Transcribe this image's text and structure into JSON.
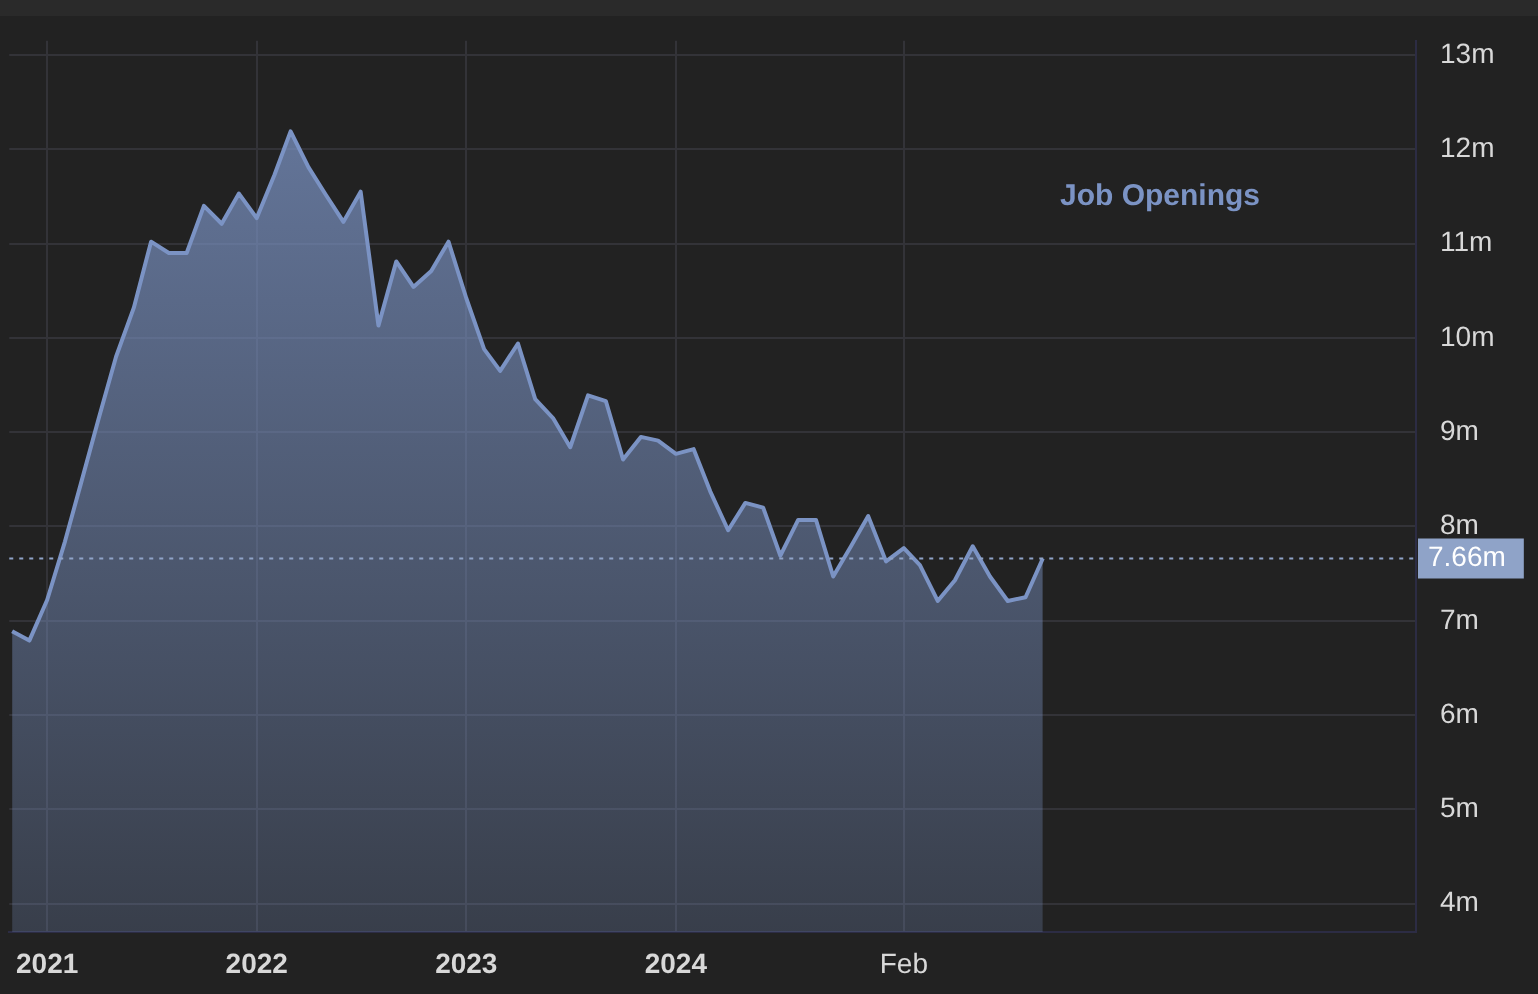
{
  "chart_data": {
    "type": "area",
    "x": [
      "2020-11",
      "2020-12",
      "2021-01",
      "2021-02",
      "2021-03",
      "2021-04",
      "2021-05",
      "2021-06",
      "2021-07",
      "2021-08",
      "2021-09",
      "2021-10",
      "2021-11",
      "2021-12",
      "2022-01",
      "2022-02",
      "2022-03",
      "2022-04",
      "2022-05",
      "2022-06",
      "2022-07",
      "2022-08",
      "2022-09",
      "2022-10",
      "2022-11",
      "2022-12",
      "2023-01",
      "2023-02",
      "2023-03",
      "2023-04",
      "2023-05",
      "2023-06",
      "2023-07",
      "2023-08",
      "2023-09",
      "2023-10",
      "2023-11",
      "2023-12",
      "2024-01",
      "2024-02",
      "2024-03",
      "2024-04",
      "2024-05",
      "2024-06",
      "2024-07",
      "2024-08",
      "2024-09",
      "2024-10",
      "2024-11",
      "2024-12",
      "2025-01",
      "2025-02",
      "2025-03",
      "2025-04",
      "2025-05",
      "2025-06",
      "2025-07",
      "2025-08",
      "2025-09",
      "2025-10"
    ],
    "series": [
      {
        "name": "Job Openings",
        "color": "#7b93c4",
        "values": [
          6.89,
          6.79,
          7.22,
          7.84,
          8.46,
          9.15,
          9.8,
          10.32,
          11.02,
          10.9,
          10.9,
          11.4,
          11.21,
          11.53,
          11.27,
          11.73,
          12.19,
          11.81,
          11.52,
          11.23,
          11.55,
          10.13,
          10.81,
          10.54,
          10.71,
          11.02,
          10.42,
          9.88,
          9.65,
          9.94,
          9.35,
          9.15,
          8.84,
          9.39,
          9.33,
          8.71,
          8.95,
          8.91,
          8.77,
          8.82,
          8.37,
          7.96,
          8.25,
          8.2,
          7.69,
          8.07,
          8.07,
          7.47,
          7.79,
          8.11,
          7.63,
          7.77,
          7.59,
          7.21,
          7.43,
          7.79,
          7.47,
          7.21,
          7.25,
          7.66
        ]
      }
    ],
    "xlim": [
      "2020-10-27",
      "2027-07-13"
    ],
    "xticks": [
      {
        "value": "2021-01",
        "label": "2021"
      },
      {
        "value": "2022-01",
        "label": "2022"
      },
      {
        "value": "2023-01",
        "label": "2023"
      },
      {
        "value": "2024-01",
        "label": "2024"
      },
      {
        "value": "2025-02",
        "label": "Feb"
      }
    ],
    "ylim": [
      3.7,
      13.15
    ],
    "yticks": [
      {
        "value": 4,
        "label": "4m"
      },
      {
        "value": 5,
        "label": "5m"
      },
      {
        "value": 6,
        "label": "6m"
      },
      {
        "value": 7,
        "label": "7m"
      },
      {
        "value": 8,
        "label": "8m"
      },
      {
        "value": 9,
        "label": "9m"
      },
      {
        "value": 10,
        "label": "10m"
      },
      {
        "value": 11,
        "label": "11m"
      },
      {
        "value": 12,
        "label": "12m"
      },
      {
        "value": 13,
        "label": "13m"
      }
    ],
    "ref_lines": [
      {
        "axis": "y",
        "value": 7.66,
        "label": "7.66m",
        "color": "#8fa3c8",
        "line_style": "dotted"
      }
    ],
    "grid": true,
    "legend": "top right",
    "marker": "none",
    "line_style": "solid"
  }
}
